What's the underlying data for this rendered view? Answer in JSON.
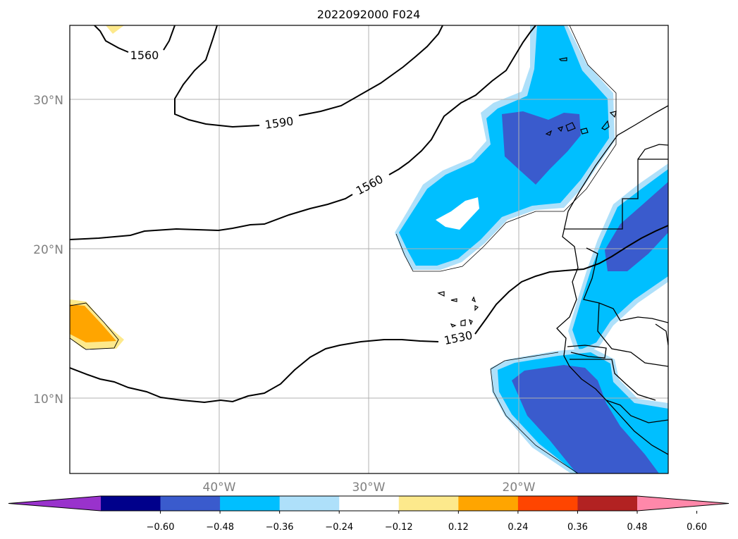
{
  "title": "2022092000 F024",
  "map": {
    "lat_labels": [
      "30°N",
      "20°N",
      "10°N"
    ],
    "lon_labels": [
      "40°W",
      "30°W",
      "20°W"
    ],
    "contour_labels": [
      "1560",
      "1590",
      "1560",
      "1530"
    ]
  },
  "colorbar": {
    "ticks": [
      "−0.60",
      "−0.48",
      "−0.36",
      "−0.24",
      "−0.12",
      "0.12",
      "0.24",
      "0.36",
      "0.48",
      "0.60"
    ],
    "colors": [
      "#9932cc",
      "#00008b",
      "#3a5bcd",
      "#00bfff",
      "#aee0fa",
      "#ffffff",
      "#fde98c",
      "#ffa500",
      "#ff4500",
      "#b22222",
      "#ff88aa"
    ]
  },
  "colors": {
    "shade_light_blue": "#aee0fa",
    "shade_cyan": "#00bfff",
    "shade_blue": "#3a5bcd",
    "shade_yellow": "#fde98c",
    "shade_orange": "#ffa500",
    "grid": "#b0b0b0"
  }
}
